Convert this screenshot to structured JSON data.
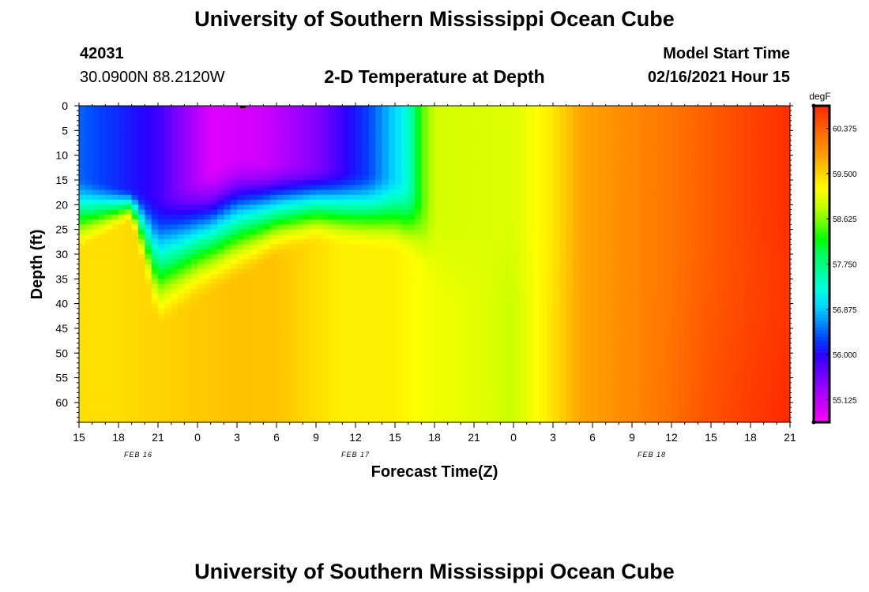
{
  "header": {
    "title_top": "University of Southern Mississippi Ocean Cube",
    "title_bottom": "University of Southern Mississippi Ocean Cube",
    "station_id": "42031",
    "station_coords": "30.0900N 88.2120W",
    "plot_title": "2-D Temperature at Depth",
    "model_start_label": "Model Start Time",
    "model_start_value": "02/16/2021 Hour 15"
  },
  "colorbar": {
    "unit": "degF",
    "ticks": [
      "60.375",
      "59.500",
      "58.625",
      "57.750",
      "56.875",
      "56.000",
      "55.125"
    ],
    "range": [
      54.69,
      60.81
    ],
    "colors": [
      "#ff00ff",
      "#cc00ff",
      "#9d00ff",
      "#6a00ff",
      "#2a00ff",
      "#0040ff",
      "#0090ff",
      "#00d8ff",
      "#00ffe0",
      "#00ffa0",
      "#00ff60",
      "#00ff00",
      "#70ff00",
      "#c8ff00",
      "#ffff00",
      "#ffd000",
      "#ffa000",
      "#ff7a00",
      "#ff5000",
      "#ff2a00"
    ]
  },
  "chart_data": {
    "type": "heatmap",
    "title": "2-D Temperature at Depth",
    "xlabel": "Forecast Time(Z)",
    "ylabel": "Depth (ft)",
    "x_hours_range": [
      0,
      54
    ],
    "x_ticks": [
      "15",
      "18",
      "21",
      "0",
      "3",
      "6",
      "9",
      "12",
      "15",
      "18",
      "21",
      "0",
      "3",
      "6",
      "9",
      "12",
      "15",
      "18",
      "21"
    ],
    "date_labels": [
      {
        "label": "FEB 16",
        "hour": 4.5
      },
      {
        "label": "FEB 17",
        "hour": 21
      },
      {
        "label": "FEB 18",
        "hour": 43.5
      }
    ],
    "ylim": [
      0,
      64
    ],
    "y_ticks": [
      "0",
      "5",
      "10",
      "15",
      "20",
      "25",
      "30",
      "35",
      "40",
      "45",
      "50",
      "55",
      "60"
    ],
    "deep_temp_keyframes": [
      [
        0,
        59.42
      ],
      [
        3,
        59.42
      ],
      [
        6,
        59.5
      ],
      [
        12,
        59.62
      ],
      [
        15,
        59.6
      ],
      [
        20,
        59.3
      ],
      [
        24,
        59.3
      ],
      [
        27,
        59.12
      ],
      [
        30,
        59.05
      ],
      [
        33,
        58.9
      ],
      [
        36,
        59.4
      ],
      [
        38,
        59.8
      ],
      [
        42,
        60.05
      ],
      [
        45,
        60.2
      ],
      [
        48,
        60.4
      ],
      [
        51,
        60.55
      ],
      [
        54,
        60.68
      ]
    ],
    "deep_temp_bottom_extra": [
      [
        0,
        0.0
      ],
      [
        42,
        0.0
      ],
      [
        46,
        0.06
      ],
      [
        54,
        0.15
      ]
    ],
    "surface_temp_keyframes": [
      [
        0,
        56.45
      ],
      [
        6,
        55.9
      ],
      [
        10,
        54.9
      ],
      [
        14,
        55.0
      ],
      [
        18,
        55.5
      ],
      [
        22,
        56.3
      ],
      [
        25,
        57.3
      ],
      [
        26,
        58.4
      ],
      [
        27,
        58.95
      ],
      [
        33,
        59.0
      ],
      [
        36,
        59.35
      ],
      [
        38,
        59.8
      ],
      [
        42,
        60.05
      ],
      [
        45,
        60.2
      ],
      [
        48,
        60.4
      ],
      [
        51,
        60.6
      ],
      [
        54,
        60.78
      ]
    ],
    "thermocline_depth_keyframes": [
      [
        0,
        22
      ],
      [
        4,
        20
      ],
      [
        6,
        32
      ],
      [
        9,
        27
      ],
      [
        12,
        23
      ],
      [
        15,
        21
      ],
      [
        18,
        20
      ],
      [
        21,
        21
      ],
      [
        24,
        22
      ],
      [
        25.5,
        24
      ],
      [
        26.5,
        28
      ],
      [
        28,
        32
      ],
      [
        54,
        32
      ]
    ],
    "mixed_layer_keyframes": [
      [
        0,
        14
      ],
      [
        6,
        18
      ],
      [
        12,
        10
      ],
      [
        15,
        11
      ],
      [
        18,
        12
      ],
      [
        24,
        14
      ],
      [
        25.5,
        16
      ],
      [
        26.5,
        20
      ],
      [
        28,
        22
      ],
      [
        54,
        22
      ]
    ]
  }
}
